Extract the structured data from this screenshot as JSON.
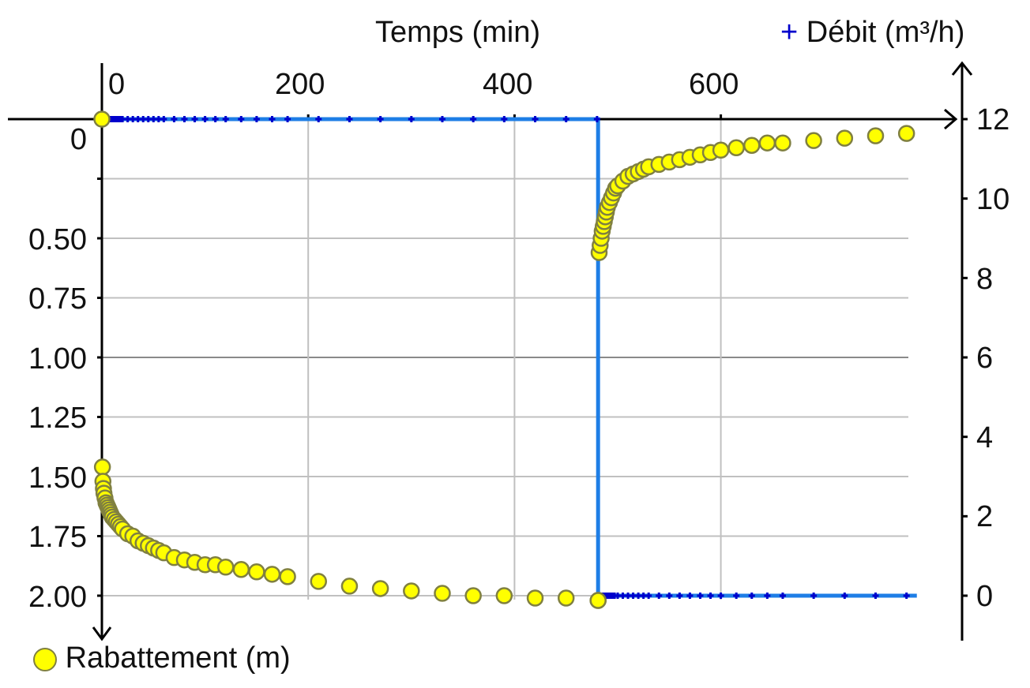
{
  "chart_data": {
    "type": "scatter",
    "title": "",
    "xlabel": "Temps (min)",
    "ylabel_left": "Rabattement (m)",
    "ylabel_right": "Débit (m³/h)",
    "x_ticks": [
      "0",
      "200",
      "400",
      "600"
    ],
    "y_left_ticks": [
      "0",
      "",
      "0.50",
      "0.75",
      "1.00",
      "1.25",
      "1.50",
      "1.75",
      "2.00"
    ],
    "y_right_ticks": [
      "0",
      "2",
      "4",
      "6",
      "8",
      "10",
      "12"
    ],
    "xlim": [
      0,
      820
    ],
    "ylim_left": [
      2.0,
      0
    ],
    "ylim_left_inverted": true,
    "ylim_right": [
      0,
      12
    ],
    "grid": true,
    "legend": [
      {
        "name": "Rabattement (m)",
        "marker": "circle",
        "color": "#ffff00",
        "position": "bottom-left"
      },
      {
        "name": "Débit (m³/h)",
        "marker": "plus",
        "color": "#0000cc",
        "position": "top-right"
      }
    ],
    "series": [
      {
        "name": "Rabattement (m)",
        "axis": "left",
        "marker": "circle",
        "color": "#ffff00",
        "x": [
          0,
          0.5,
          1,
          1.5,
          2,
          3,
          4,
          5,
          6,
          7,
          8,
          9,
          10,
          12,
          14,
          16,
          18,
          20,
          25,
          30,
          35,
          40,
          45,
          50,
          55,
          60,
          70,
          80,
          90,
          100,
          110,
          120,
          135,
          150,
          165,
          180,
          210,
          240,
          270,
          300,
          330,
          360,
          390,
          420,
          450,
          481,
          481,
          482,
          483,
          484,
          485,
          486,
          487,
          488,
          489,
          490,
          492,
          494,
          496,
          498,
          500,
          505,
          510,
          515,
          520,
          525,
          530,
          540,
          550,
          560,
          570,
          580,
          590,
          600,
          615,
          630,
          645,
          660,
          690,
          720,
          750,
          780
        ],
        "values": [
          0.0,
          1.46,
          1.52,
          1.55,
          1.57,
          1.59,
          1.61,
          1.62,
          1.63,
          1.64,
          1.65,
          1.66,
          1.67,
          1.68,
          1.69,
          1.7,
          1.71,
          1.72,
          1.74,
          1.75,
          1.77,
          1.78,
          1.79,
          1.8,
          1.81,
          1.82,
          1.84,
          1.85,
          1.86,
          1.87,
          1.87,
          1.88,
          1.89,
          1.9,
          1.91,
          1.92,
          1.94,
          1.96,
          1.97,
          1.98,
          1.99,
          2.0,
          2.0,
          2.01,
          2.01,
          2.02,
          2.02,
          0.56,
          0.53,
          0.5,
          0.47,
          0.45,
          0.43,
          0.41,
          0.39,
          0.37,
          0.35,
          0.33,
          0.31,
          0.29,
          0.28,
          0.26,
          0.24,
          0.23,
          0.22,
          0.21,
          0.2,
          0.19,
          0.18,
          0.17,
          0.16,
          0.15,
          0.14,
          0.13,
          0.12,
          0.11,
          0.1,
          0.1,
          0.09,
          0.08,
          0.07,
          0.06
        ]
      },
      {
        "name": "Débit (m³/h)",
        "axis": "right",
        "marker": "plus",
        "line_color": "#1e7ee6",
        "color": "#0000cc",
        "x": [
          0,
          481,
          481,
          790
        ],
        "values": [
          12,
          12,
          0,
          0
        ]
      }
    ]
  },
  "labels": {
    "x_axis_title": "Temps (min)",
    "right_legend_marker": "+",
    "right_axis_title": "Débit (m³/h)",
    "left_legend_label": "Rabattement (m)"
  },
  "axis_labels": {
    "x": [
      "0",
      "200",
      "400",
      "600"
    ],
    "left": [
      "0",
      "0.50",
      "0.75",
      "1.00",
      "1.25",
      "1.50",
      "1.75",
      "2.00"
    ],
    "right": [
      "12",
      "10",
      "8",
      "6",
      "4",
      "2",
      "0"
    ]
  }
}
